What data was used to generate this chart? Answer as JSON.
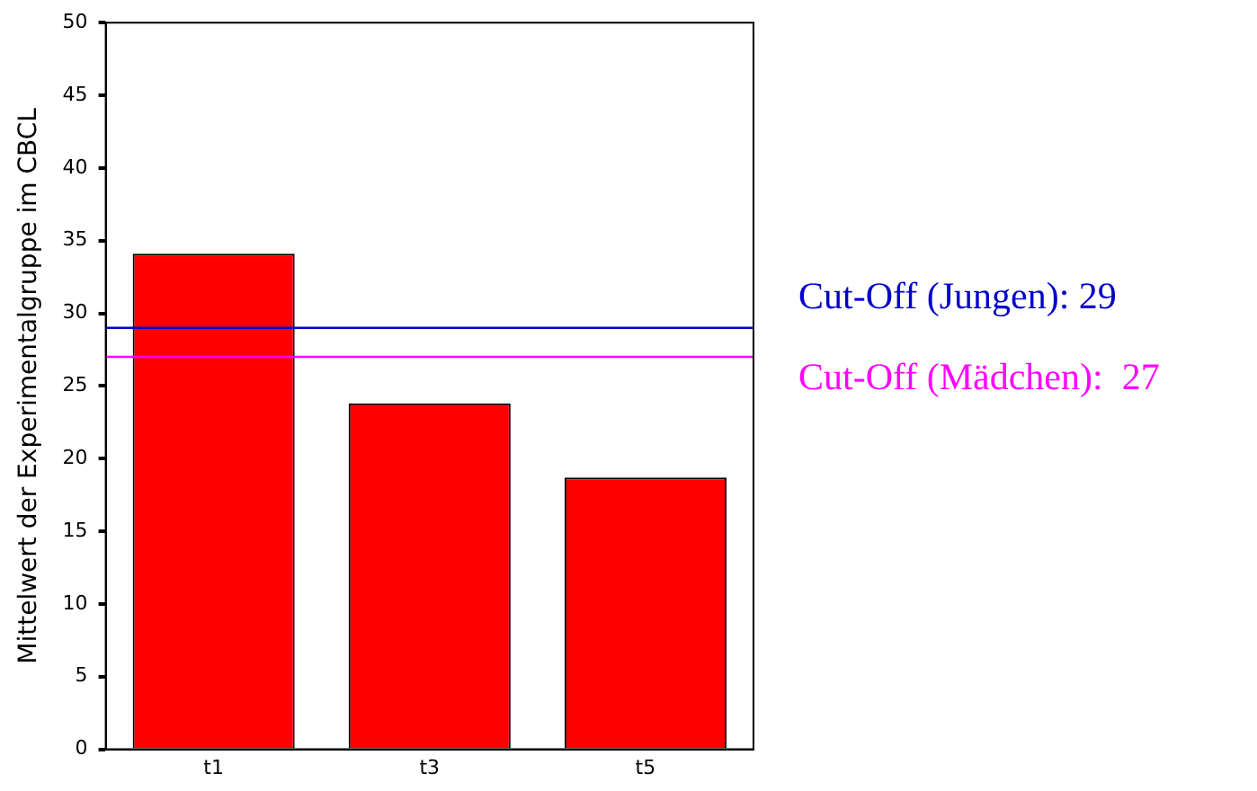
{
  "chart_data": {
    "type": "bar",
    "ylabel": "Mittelwert der Experimentalgruppe im CBCL",
    "categories": [
      "t1",
      "t3",
      "t5"
    ],
    "values": [
      34.1,
      23.8,
      18.7
    ],
    "color": "#ff0000",
    "ylim": [
      0,
      50
    ],
    "yticks": [
      0,
      5,
      10,
      15,
      20,
      25,
      30,
      35,
      40,
      45,
      50
    ],
    "grid": false,
    "legend": false,
    "ref_lines": [
      {
        "axis": "y",
        "value": 29,
        "label": "Cut-Off (Jungen): 29",
        "color": "#0000cc"
      },
      {
        "axis": "y",
        "value": 27,
        "label": "Cut-Off (Mädchen):  27",
        "color": "#ff00ff"
      }
    ]
  }
}
